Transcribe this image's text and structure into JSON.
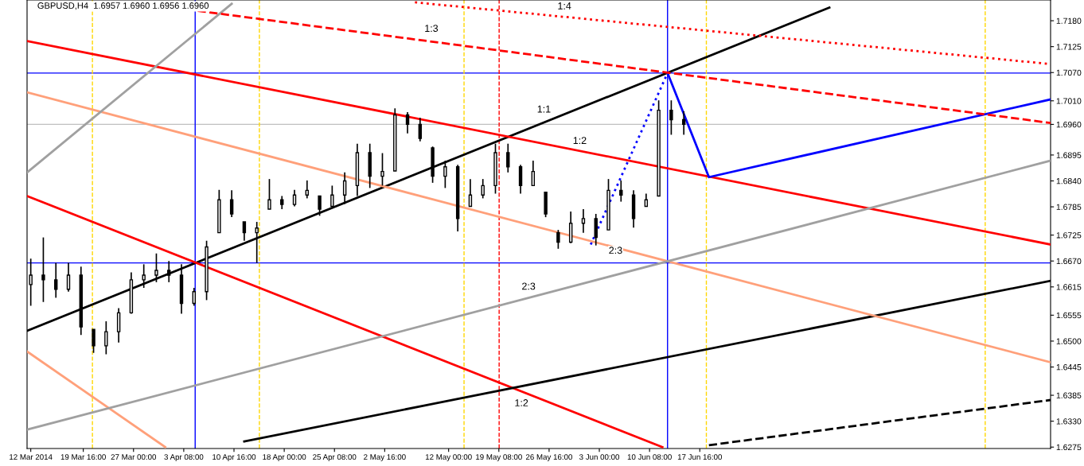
{
  "chart_data": {
    "type": "candlestick",
    "title": "GBPUSD,H4  1.6957 1.6960 1.6956 1.6960",
    "x": [
      "2014-03-12T00:00",
      "2014-03-13T20:00",
      "2014-03-15T16:00",
      "2014-03-17T12:00",
      "2014-03-19T08:00",
      "2014-03-21T04:00",
      "2014-03-23T00:00",
      "2014-03-24T20:00",
      "2014-03-26T16:00",
      "2014-03-28T12:00",
      "2014-03-30T08:00",
      "2014-04-01T04:00",
      "2014-04-03T00:00",
      "2014-04-04T20:00",
      "2014-04-06T16:00",
      "2014-04-08T12:00",
      "2014-04-10T08:00",
      "2014-04-12T04:00",
      "2014-04-14T00:00",
      "2014-04-15T20:00",
      "2014-04-17T16:00",
      "2014-04-19T12:00",
      "2014-04-21T08:00",
      "2014-04-23T04:00",
      "2014-04-25T00:00",
      "2014-04-26T20:00",
      "2014-04-28T16:00",
      "2014-04-30T12:00",
      "2014-05-02T08:00",
      "2014-05-04T04:00",
      "2014-05-06T00:00",
      "2014-05-07T20:00",
      "2014-05-09T16:00",
      "2014-05-11T12:00",
      "2014-05-13T08:00",
      "2014-05-15T04:00",
      "2014-05-17T00:00",
      "2014-05-18T20:00",
      "2014-05-20T16:00",
      "2014-05-22T12:00",
      "2014-05-24T08:00",
      "2014-05-26T04:00",
      "2014-05-28T00:00",
      "2014-05-29T20:00",
      "2014-05-31T16:00",
      "2014-06-02T12:00",
      "2014-06-04T08:00",
      "2014-06-06T04:00",
      "2014-06-08T00:00",
      "2014-06-09T20:00",
      "2014-06-11T16:00",
      "2014-06-13T12:00",
      "2014-06-15T08:00"
    ],
    "ohlc": [
      [
        1.662,
        1.6675,
        1.6575,
        1.664
      ],
      [
        1.664,
        1.672,
        1.6583,
        1.663
      ],
      [
        1.663,
        1.6666,
        1.6592,
        1.661
      ],
      [
        1.661,
        1.6666,
        1.6605,
        1.664
      ],
      [
        1.664,
        1.6658,
        1.6513,
        1.653
      ],
      [
        1.6525,
        1.6525,
        1.6475,
        1.649
      ],
      [
        1.649,
        1.6542,
        1.6472,
        1.652
      ],
      [
        1.652,
        1.657,
        1.6497,
        1.656
      ],
      [
        1.656,
        1.6646,
        1.6558,
        1.663
      ],
      [
        1.663,
        1.6663,
        1.6613,
        1.664
      ],
      [
        1.664,
        1.6686,
        1.6625,
        1.665
      ],
      [
        1.665,
        1.667,
        1.6625,
        1.664
      ],
      [
        1.664,
        1.6663,
        1.6558,
        1.658
      ],
      [
        1.658,
        1.6613,
        1.6575,
        1.6605
      ],
      [
        1.6605,
        1.6713,
        1.6587,
        1.67
      ],
      [
        1.673,
        1.6821,
        1.673,
        1.68
      ],
      [
        1.68,
        1.682,
        1.6763,
        1.677
      ],
      [
        1.6753,
        1.6753,
        1.6713,
        1.673
      ],
      [
        1.673,
        1.6753,
        1.6666,
        1.674
      ],
      [
        1.678,
        1.6844,
        1.678,
        1.68
      ],
      [
        1.68,
        1.6808,
        1.678,
        1.679
      ],
      [
        1.679,
        1.6821,
        1.6786,
        1.681
      ],
      [
        1.681,
        1.6841,
        1.6803,
        1.682
      ],
      [
        1.6808,
        1.6808,
        1.6766,
        1.678
      ],
      [
        1.6786,
        1.683,
        1.6786,
        1.681
      ],
      [
        1.681,
        1.6858,
        1.6791,
        1.684
      ],
      [
        1.683,
        1.6919,
        1.6808,
        1.69
      ],
      [
        1.69,
        1.6919,
        1.6825,
        1.685
      ],
      [
        1.685,
        1.6899,
        1.683,
        1.686
      ],
      [
        1.6861,
        1.6994,
        1.6861,
        1.698
      ],
      [
        1.698,
        1.6986,
        1.6941,
        1.696
      ],
      [
        1.696,
        1.6974,
        1.6924,
        1.693
      ],
      [
        1.691,
        1.6913,
        1.6836,
        1.685
      ],
      [
        1.685,
        1.6883,
        1.6825,
        1.687
      ],
      [
        1.687,
        1.6874,
        1.6733,
        1.676
      ],
      [
        1.6786,
        1.6844,
        1.6786,
        1.681
      ],
      [
        1.681,
        1.6844,
        1.6803,
        1.683
      ],
      [
        1.683,
        1.6919,
        1.6813,
        1.69
      ],
      [
        1.69,
        1.6919,
        1.6858,
        1.687
      ],
      [
        1.687,
        1.6874,
        1.6813,
        1.683
      ],
      [
        1.683,
        1.6883,
        1.683,
        1.686
      ],
      [
        1.6816,
        1.6816,
        1.6763,
        1.677
      ],
      [
        1.673,
        1.6736,
        1.6696,
        1.671
      ],
      [
        1.671,
        1.6775,
        1.6708,
        1.675
      ],
      [
        1.675,
        1.678,
        1.673,
        1.676
      ],
      [
        1.676,
        1.677,
        1.6703,
        1.672
      ],
      [
        1.6736,
        1.6844,
        1.6736,
        1.682
      ],
      [
        1.682,
        1.6841,
        1.6796,
        1.681
      ],
      [
        1.681,
        1.682,
        1.6741,
        1.676
      ],
      [
        1.6786,
        1.6813,
        1.6786,
        1.68
      ],
      [
        1.6808,
        1.7011,
        1.6808,
        1.699
      ],
      [
        1.699,
        1.7011,
        1.6938,
        1.697
      ],
      [
        1.697,
        1.6988,
        1.6938,
        1.696
      ]
    ],
    "color": "#000000",
    "series": [
      {
        "type": "line",
        "color": "#000000",
        "line_style": "solid",
        "x": [
          "2014-03-11T11:00",
          "2014-07-06T14:00"
        ],
        "values": [
          1.6522,
          1.7208
        ]
      },
      {
        "type": "line",
        "color": "#ff0000",
        "line_style": "solid",
        "x": [
          "2014-03-11T11:00",
          "2014-08-07T21:00"
        ],
        "values": [
          1.7137,
          1.6705
        ]
      },
      {
        "type": "line",
        "color": "#ff0000",
        "line_style": "solid",
        "x": [
          "2014-03-11T11:00",
          "2014-06-12T05:00"
        ],
        "values": [
          1.6808,
          1.6275
        ]
      },
      {
        "type": "line",
        "color": "#000000",
        "line_style": "solid",
        "x": [
          "2014-04-12T04:00",
          "2014-08-07T21:00"
        ],
        "values": [
          1.6287,
          1.6628
        ]
      },
      {
        "type": "line",
        "color": "#000000",
        "line_style": "dashed",
        "x": [
          "2014-06-19T00:00",
          "2014-08-07T21:00"
        ],
        "values": [
          1.6279,
          1.6375
        ]
      },
      {
        "type": "line",
        "color": "#0000ff",
        "line_style": "solid",
        "x": [
          "2014-06-12T23:00",
          "2014-06-19T00:00",
          "2014-08-07T21:00"
        ],
        "values": [
          1.7069,
          1.6848,
          1.7013
        ]
      },
      {
        "type": "line",
        "color": "#0000ff",
        "line_style": "dotted",
        "x": [
          "2014-06-01T18:00",
          "2014-06-12T23:00"
        ],
        "values": [
          1.6705,
          1.7069
        ]
      },
      {
        "type": "line",
        "color": "#ffa07a",
        "line_style": "solid",
        "x": [
          "2014-03-11T11:00",
          "2014-08-07T21:00"
        ],
        "values": [
          1.7028,
          1.6455
        ]
      },
      {
        "type": "line",
        "color": "#ffa07a",
        "line_style": "solid",
        "x": [
          "2014-03-11T11:00",
          "2014-03-31T15:00"
        ],
        "values": [
          1.6478,
          1.6275
        ]
      },
      {
        "type": "line",
        "color": "#a0a0a0",
        "line_style": "solid",
        "x": [
          "2014-03-11T11:00",
          "2014-04-10T08:00"
        ],
        "values": [
          1.6858,
          1.7216
        ]
      },
      {
        "type": "line",
        "color": "#a0a0a0",
        "line_style": "solid",
        "x": [
          "2014-03-11T11:00",
          "2014-08-07T21:00"
        ],
        "values": [
          1.6312,
          1.6883
        ]
      },
      {
        "type": "line",
        "color": "#ff0000",
        "line_style": "dashed",
        "x": [
          "2014-04-05T09:00",
          "2014-08-07T21:00"
        ],
        "values": [
          1.7201,
          1.6963
        ]
      },
      {
        "type": "line",
        "color": "#ff0000",
        "line_style": "dotted",
        "x": [
          "2014-05-07T02:00",
          "2014-08-07T21:00"
        ],
        "values": [
          1.7219,
          1.7088
        ]
      }
    ],
    "ref_lines": [
      {
        "axis": "y",
        "value": 1.7069,
        "color": "#0000ff",
        "line_style": "solid"
      },
      {
        "axis": "y",
        "value": 1.6666,
        "color": "#0000ff",
        "line_style": "solid"
      },
      {
        "axis": "y",
        "value": 1.696,
        "color": "#c0c0c0",
        "line_style": "solid"
      },
      {
        "axis": "x",
        "value": "2014-04-05T00:00",
        "color": "#0000ff",
        "line_style": "solid"
      },
      {
        "axis": "x",
        "value": "2014-06-12T23:00",
        "color": "#0000ff",
        "line_style": "solid"
      },
      {
        "axis": "x",
        "value": "2014-03-21T00:00",
        "color": "#ffd700",
        "line_style": "dashed"
      },
      {
        "axis": "x",
        "value": "2014-04-14T09:00",
        "color": "#ffd700",
        "line_style": "dashed"
      },
      {
        "axis": "x",
        "value": "2014-05-14T06:00",
        "color": "#ffd700",
        "line_style": "dashed"
      },
      {
        "axis": "x",
        "value": "2014-06-18T15:00",
        "color": "#ffd700",
        "line_style": "dashed"
      },
      {
        "axis": "x",
        "value": "2014-07-29T08:00",
        "color": "#ffd700",
        "line_style": "dashed"
      },
      {
        "axis": "x",
        "value": "2014-05-19T09:00",
        "color": "#ff0000",
        "line_style": "dashed"
      }
    ],
    "annotations": [
      "1:1",
      "1:2",
      "1:3",
      "1:4",
      "2:3",
      "2:3",
      "1:2"
    ],
    "xlim": [
      "2014-03-11T11:00",
      "2014-08-07T21:00"
    ],
    "xticks": [
      {
        "value": "2014-03-12T00:00",
        "label": "12 Mar 2014"
      },
      {
        "value": "2014-03-19T16:00",
        "label": "19 Mar 16:00"
      },
      {
        "value": "2014-03-27T00:00",
        "label": "27 Mar 00:00"
      },
      {
        "value": "2014-04-03T08:00",
        "label": "3 Apr 08:00"
      },
      {
        "value": "2014-04-10T16:00",
        "label": "10 Apr 16:00"
      },
      {
        "value": "2014-04-18T00:00",
        "label": "18 Apr 00:00"
      },
      {
        "value": "2014-04-25T08:00",
        "label": "25 Apr 08:00"
      },
      {
        "value": "2014-05-02T16:00",
        "label": "2 May 16:00"
      },
      {
        "value": "2014-05-12T00:00",
        "label": "12 May 00:00"
      },
      {
        "value": "2014-05-19T08:00",
        "label": "19 May 08:00"
      },
      {
        "value": "2014-05-26T16:00",
        "label": "26 May 16:00"
      },
      {
        "value": "2014-06-03T00:00",
        "label": "3 Jun 00:00"
      },
      {
        "value": "2014-06-10T08:00",
        "label": "10 Jun 08:00"
      },
      {
        "value": "2014-06-17T16:00",
        "label": "17 Jun 16:00"
      }
    ],
    "ylim": [
      1.6272,
      1.7224
    ],
    "yticks": [
      {
        "value": 1.6275,
        "label": "1.6275"
      },
      {
        "value": 1.633,
        "label": "1.6330"
      },
      {
        "value": 1.6385,
        "label": "1.6385"
      },
      {
        "value": 1.6445,
        "label": "1.6445"
      },
      {
        "value": 1.65,
        "label": "1.6500"
      },
      {
        "value": 1.6555,
        "label": "1.6555"
      },
      {
        "value": 1.6615,
        "label": "1.6615"
      },
      {
        "value": 1.667,
        "label": "1.6670"
      },
      {
        "value": 1.6725,
        "label": "1.6725"
      },
      {
        "value": 1.6785,
        "label": "1.6785"
      },
      {
        "value": 1.684,
        "label": "1.6840"
      },
      {
        "value": 1.6895,
        "label": "1.6895"
      },
      {
        "value": 1.696,
        "label": "1.6960"
      },
      {
        "value": 1.701,
        "label": "1.7010"
      },
      {
        "value": 1.707,
        "label": "1.7070"
      },
      {
        "value": 1.7125,
        "label": "1.7125"
      },
      {
        "value": 1.718,
        "label": "1.7180"
      }
    ],
    "grid": false,
    "legend": false
  }
}
